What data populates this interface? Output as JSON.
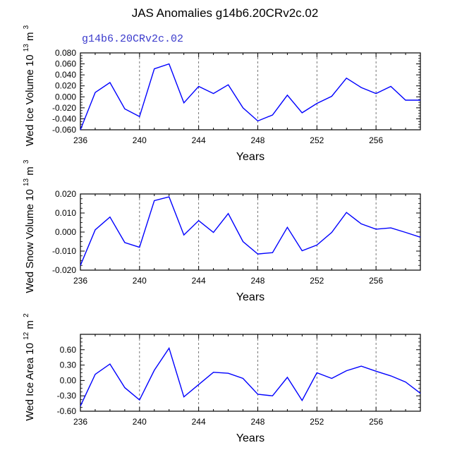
{
  "title": "JAS Anomalies g14b6.20CRv2c.02",
  "colors": {
    "line": "#0000ff",
    "subtitle": "#3a3acc",
    "axis": "#000000",
    "grid": "#555555"
  },
  "chart_data": [
    {
      "type": "line",
      "subtitle": "g14b6.20CRv2c.02",
      "ylabel": "Wed Ice Volume 10",
      "ylabel_exp": "13",
      "ylabel_unit": "m",
      "ylabel_unit_exp": "3",
      "xlabel": "Years",
      "xlim": [
        236,
        259
      ],
      "ylim": [
        -0.06,
        0.08
      ],
      "xticks": [
        236,
        240,
        244,
        248,
        252,
        256
      ],
      "yticks": [
        -0.06,
        -0.04,
        -0.02,
        0.0,
        0.02,
        0.04,
        0.06,
        0.08
      ],
      "ytick_labels": [
        "-0.060",
        "-0.040",
        "-0.020",
        "0.000",
        "0.020",
        "0.040",
        "0.060",
        "0.080"
      ],
      "x": [
        236,
        237,
        238,
        239,
        240,
        241,
        242,
        243,
        244,
        245,
        246,
        247,
        248,
        249,
        250,
        251,
        252,
        253,
        254,
        255,
        256,
        257,
        258,
        259
      ],
      "values": [
        -0.06,
        0.008,
        0.026,
        -0.022,
        -0.036,
        0.051,
        0.06,
        -0.011,
        0.019,
        0.006,
        0.022,
        -0.02,
        -0.044,
        -0.033,
        0.003,
        -0.029,
        -0.012,
        0.001,
        0.034,
        0.017,
        0.006,
        0.019,
        -0.006,
        -0.006
      ],
      "gridlines_x": [
        240,
        244,
        248,
        252,
        256
      ]
    },
    {
      "type": "line",
      "ylabel": "Wed Snow Volume 10",
      "ylabel_exp": "13",
      "ylabel_unit": "m",
      "ylabel_unit_exp": "3",
      "xlabel": "Years",
      "xlim": [
        236,
        259
      ],
      "ylim": [
        -0.02,
        0.02
      ],
      "xticks": [
        236,
        240,
        244,
        248,
        252,
        256
      ],
      "yticks": [
        -0.02,
        -0.01,
        0.0,
        0.01,
        0.02
      ],
      "ytick_labels": [
        "-0.020",
        "-0.010",
        "0.000",
        "0.010",
        "0.020"
      ],
      "x": [
        236,
        237,
        238,
        239,
        240,
        241,
        242,
        243,
        244,
        245,
        246,
        247,
        248,
        249,
        250,
        251,
        252,
        253,
        254,
        255,
        256,
        257,
        258,
        259
      ],
      "values": [
        -0.0175,
        0.0012,
        0.0079,
        -0.0055,
        -0.008,
        0.0165,
        0.0185,
        -0.0015,
        0.006,
        -0.0002,
        0.0097,
        -0.005,
        -0.0115,
        -0.0108,
        0.0025,
        -0.0098,
        -0.0068,
        -0.0002,
        0.0103,
        0.0043,
        0.0015,
        0.0022,
        -0.0002,
        -0.0027
      ],
      "gridlines_x": [
        240,
        244,
        248,
        252,
        256
      ]
    },
    {
      "type": "line",
      "ylabel": "Wed Ice Area 10",
      "ylabel_exp": "12",
      "ylabel_unit": "m",
      "ylabel_unit_exp": "2",
      "xlabel": "Years",
      "xlim": [
        236,
        259
      ],
      "ylim": [
        -0.6,
        0.9
      ],
      "xticks": [
        236,
        240,
        244,
        248,
        252,
        256
      ],
      "yticks": [
        -0.6,
        -0.3,
        0.0,
        0.3,
        0.6
      ],
      "ytick_labels": [
        "-0.60",
        "-0.30",
        "0.00",
        "0.30",
        "0.60"
      ],
      "x": [
        236,
        237,
        238,
        239,
        240,
        241,
        242,
        243,
        244,
        245,
        246,
        247,
        248,
        249,
        250,
        251,
        252,
        253,
        254,
        255,
        256,
        257,
        258,
        259
      ],
      "values": [
        -0.5,
        0.12,
        0.32,
        -0.14,
        -0.38,
        0.2,
        0.63,
        -0.32,
        -0.08,
        0.16,
        0.14,
        0.04,
        -0.27,
        -0.3,
        0.06,
        -0.39,
        0.15,
        0.04,
        0.19,
        0.28,
        0.18,
        0.09,
        -0.03,
        -0.25
      ],
      "gridlines_x": [
        240,
        244,
        248,
        252,
        256
      ]
    }
  ]
}
